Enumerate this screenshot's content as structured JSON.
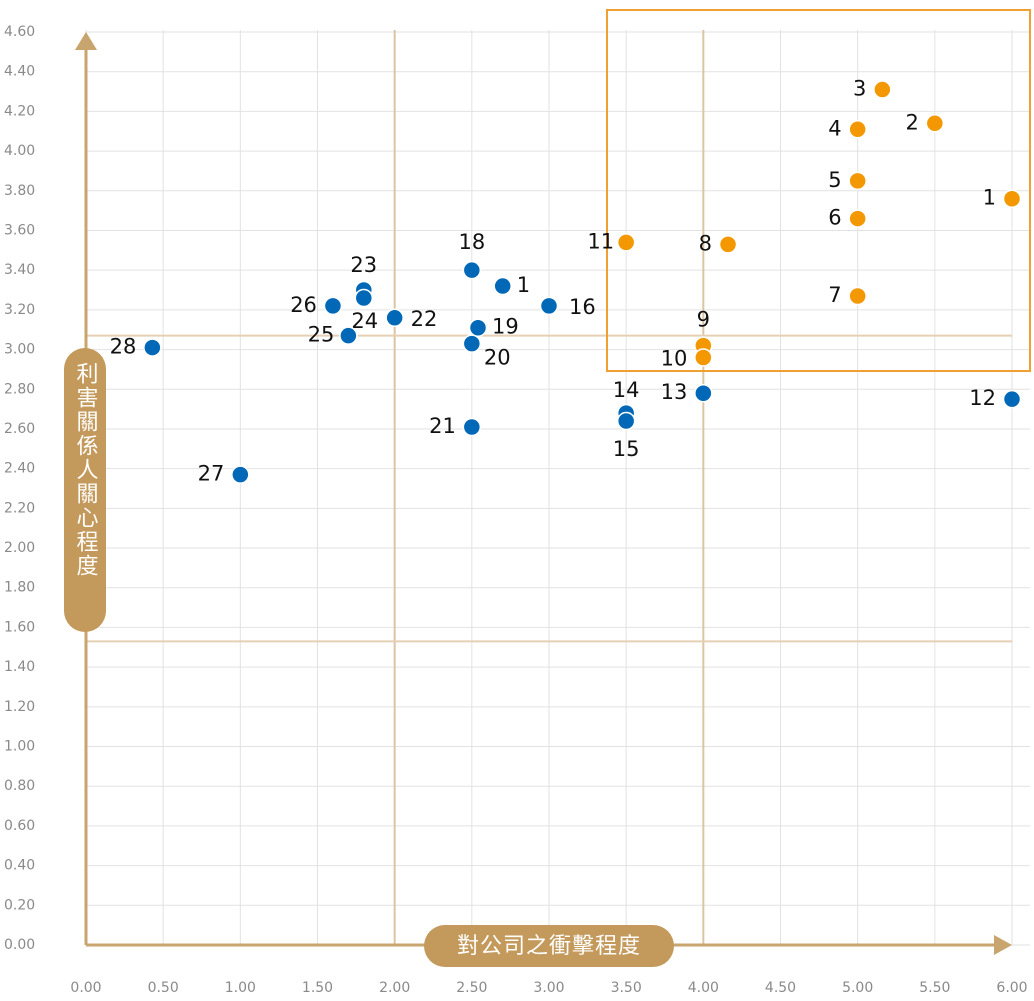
{
  "chart_data": {
    "type": "scatter",
    "x_label": "對公司之衝擊程度",
    "y_label": "利害關係人關心程度",
    "xlim": [
      0,
      6
    ],
    "ylim": [
      0,
      4.6
    ],
    "xticks": [
      {
        "value": 0,
        "label": "0.00"
      },
      {
        "value": 0.5,
        "label": "0.50"
      },
      {
        "value": 1,
        "label": "1.00"
      },
      {
        "value": 1.5,
        "label": "1.50"
      },
      {
        "value": 2,
        "label": "2.00"
      },
      {
        "value": 2.5,
        "label": "2.50"
      },
      {
        "value": 3,
        "label": "3.00"
      },
      {
        "value": 3.5,
        "label": "3.50"
      },
      {
        "value": 4,
        "label": "4.00"
      },
      {
        "value": 4.5,
        "label": "4.50"
      },
      {
        "value": 5,
        "label": "5.00"
      },
      {
        "value": 5.5,
        "label": "5.50"
      },
      {
        "value": 6,
        "label": "6.00"
      }
    ],
    "yticks": [
      {
        "value": 0,
        "label": "0.00"
      },
      {
        "value": 0.2,
        "label": "0.20"
      },
      {
        "value": 0.4,
        "label": "0.40"
      },
      {
        "value": 0.6,
        "label": "0.60"
      },
      {
        "value": 0.8,
        "label": "0.80"
      },
      {
        "value": 1,
        "label": "1.00"
      },
      {
        "value": 1.2,
        "label": "1.20"
      },
      {
        "value": 1.4,
        "label": "1.40"
      },
      {
        "value": 1.6,
        "label": "1.60"
      },
      {
        "value": 1.8,
        "label": "1.80"
      },
      {
        "value": 2,
        "label": "2.00"
      },
      {
        "value": 2.2,
        "label": "2.20"
      },
      {
        "value": 2.4,
        "label": "2.40"
      },
      {
        "value": 2.6,
        "label": "2.60"
      },
      {
        "value": 2.8,
        "label": "2.80"
      },
      {
        "value": 3,
        "label": "3.00"
      },
      {
        "value": 3.2,
        "label": "3.20"
      },
      {
        "value": 3.4,
        "label": "3.40"
      },
      {
        "value": 3.6,
        "label": "3.60"
      },
      {
        "value": 3.8,
        "label": "3.80"
      },
      {
        "value": 4,
        "label": "4.00"
      },
      {
        "value": 4.2,
        "label": "4.20"
      },
      {
        "value": 4.4,
        "label": "4.40"
      },
      {
        "value": 4.6,
        "label": "4.60"
      }
    ],
    "grid": true,
    "x_ref_lines": [
      2,
      4
    ],
    "y_ref_lines": [
      3.07,
      1.53
    ],
    "series": [
      {
        "color": "#f39800",
        "x": [
          6,
          5.5,
          5.16,
          5,
          5,
          5,
          5,
          4.16,
          4,
          4,
          3.5
        ],
        "values": [
          3.76,
          4.14,
          4.31,
          4.11,
          3.85,
          3.66,
          3.27,
          3.53,
          3.02,
          2.96,
          3.54
        ],
        "labels": [
          "1",
          "2",
          "3",
          "4",
          "5",
          "6",
          "7",
          "8",
          "9",
          "10",
          "11"
        ]
      },
      {
        "color": "#0068b7",
        "x": [
          2.7,
          6,
          4,
          3.5,
          3.5,
          3,
          2.5,
          2.54,
          2.5,
          2.5,
          2,
          1.8,
          1.8,
          1.7,
          1.6,
          1,
          0.43
        ],
        "values": [
          3.32,
          2.75,
          2.78,
          2.68,
          2.64,
          3.22,
          3.4,
          3.11,
          3.03,
          2.61,
          3.16,
          3.3,
          3.26,
          3.07,
          3.22,
          2.37,
          3.01
        ],
        "labels": [
          "1",
          "12",
          "13",
          "14",
          "15",
          "16",
          "18",
          "19",
          "20",
          "21",
          "22",
          "23",
          "24",
          "25",
          "26",
          "27",
          "28"
        ]
      }
    ]
  }
}
